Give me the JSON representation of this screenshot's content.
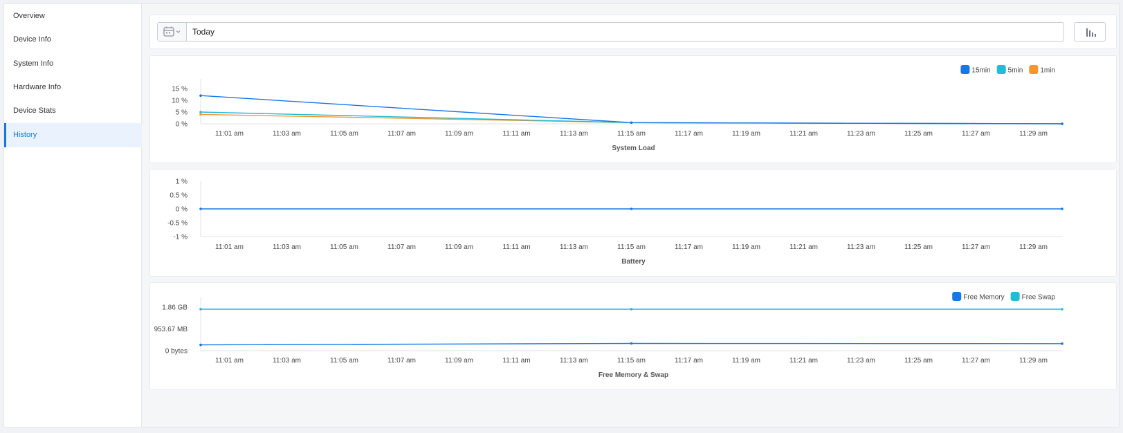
{
  "sidebar": {
    "items": [
      {
        "label": "Overview",
        "active": false
      },
      {
        "label": "Device Info",
        "active": false
      },
      {
        "label": "System Info",
        "active": false
      },
      {
        "label": "Hardware Info",
        "active": false
      },
      {
        "label": "Device Stats",
        "active": false
      },
      {
        "label": "History",
        "active": true
      }
    ]
  },
  "toolbar": {
    "date_value": "Today",
    "calendar_icon": "calendar-icon",
    "chart_type_icon": "bar-chart-icon"
  },
  "colors": {
    "accent": "#1777e6",
    "series_blue": "#1777e6",
    "series_cyan": "#22bcd6",
    "series_orange": "#f8962b"
  },
  "chart_data": [
    {
      "type": "line",
      "title": "System Load",
      "x": [
        "11:00 am",
        "11:15 am",
        "11:30 am"
      ],
      "tick_labels": [
        "11:01 am",
        "11:03 am",
        "11:05 am",
        "11:07 am",
        "11:09 am",
        "11:11 am",
        "11:13 am",
        "11:15 am",
        "11:17 am",
        "11:19 am",
        "11:21 am",
        "11:23 am",
        "11:25 am",
        "11:27 am",
        "11:29 am"
      ],
      "y_tick_labels": [
        "15 %",
        "10 %",
        "5 %",
        "0 %"
      ],
      "ylim": [
        0,
        15
      ],
      "legend_position": "top-right",
      "series": [
        {
          "name": "15min",
          "color": "#1777e6",
          "values": [
            12,
            0.5,
            0
          ]
        },
        {
          "name": "5min",
          "color": "#22bcd6",
          "values": [
            5,
            0.5,
            0
          ]
        },
        {
          "name": "1min",
          "color": "#f8962b",
          "values": [
            4,
            0.5,
            0
          ]
        }
      ]
    },
    {
      "type": "line",
      "title": "Battery",
      "x": [
        "11:00 am",
        "11:15 am",
        "11:30 am"
      ],
      "tick_labels": [
        "11:01 am",
        "11:03 am",
        "11:05 am",
        "11:07 am",
        "11:09 am",
        "11:11 am",
        "11:13 am",
        "11:15 am",
        "11:17 am",
        "11:19 am",
        "11:21 am",
        "11:23 am",
        "11:25 am",
        "11:27 am",
        "11:29 am"
      ],
      "y_tick_labels": [
        "1 %",
        "0.5 %",
        "0 %",
        "-0.5 %",
        "-1 %"
      ],
      "ylim": [
        -1,
        1
      ],
      "series": [
        {
          "name": "Battery",
          "color": "#1777e6",
          "values": [
            0,
            0,
            0
          ]
        }
      ]
    },
    {
      "type": "line",
      "title": "Free Memory & Swap",
      "x": [
        "11:00 am",
        "11:15 am",
        "11:30 am"
      ],
      "tick_labels": [
        "11:01 am",
        "11:03 am",
        "11:05 am",
        "11:07 am",
        "11:09 am",
        "11:11 am",
        "11:13 am",
        "11:15 am",
        "11:17 am",
        "11:19 am",
        "11:21 am",
        "11:23 am",
        "11:25 am",
        "11:27 am",
        "11:29 am"
      ],
      "y_tick_labels": [
        "1.86 GB",
        "953.67 MB",
        "0 bytes"
      ],
      "ylim": [
        0,
        2.1
      ],
      "legend_position": "top-right",
      "series": [
        {
          "name": "Free Memory",
          "color": "#1777e6",
          "values": [
            0.28,
            0.35,
            0.34
          ]
        },
        {
          "name": "Free Swap",
          "color": "#22bcd6",
          "values": [
            2.0,
            2.0,
            2.0
          ]
        }
      ]
    }
  ]
}
